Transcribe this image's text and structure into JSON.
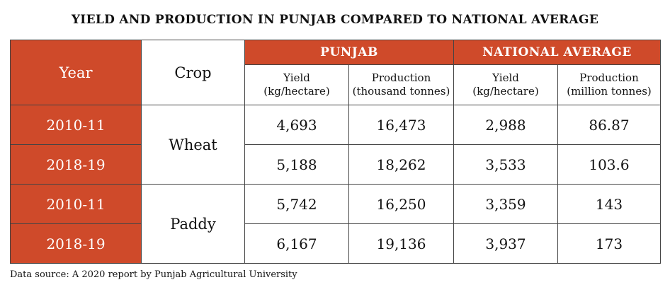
{
  "title": "YIELD AND PRODUCTION IN PUNJAB COMPARED TO NATIONAL AVERAGE",
  "table": {
    "header": {
      "year": "Year",
      "crop": "Crop",
      "groups": [
        "PUNJAB",
        "NATIONAL AVERAGE"
      ],
      "columns": [
        {
          "label": "Yield",
          "unit": "(kg/hectare)"
        },
        {
          "label": "Production",
          "unit": "(thousand tonnes)"
        },
        {
          "label": "Yield",
          "unit": "(kg/hectare)"
        },
        {
          "label": "Production",
          "unit": "(million tonnes)"
        }
      ]
    },
    "crops": [
      "Wheat",
      "Paddy"
    ],
    "rows": [
      {
        "year": "2010-11",
        "values": [
          "4,693",
          "16,473",
          "2,988",
          "86.87"
        ]
      },
      {
        "year": "2018-19",
        "values": [
          "5,188",
          "18,262",
          "3,533",
          "103.6"
        ]
      },
      {
        "year": "2010-11",
        "values": [
          "5,742",
          "16,250",
          "3,359",
          "143"
        ]
      },
      {
        "year": "2018-19",
        "values": [
          "6,167",
          "19,136",
          "3,937",
          "173"
        ]
      }
    ]
  },
  "source": "Data source: A 2020 report by Punjab Agricultural University"
}
